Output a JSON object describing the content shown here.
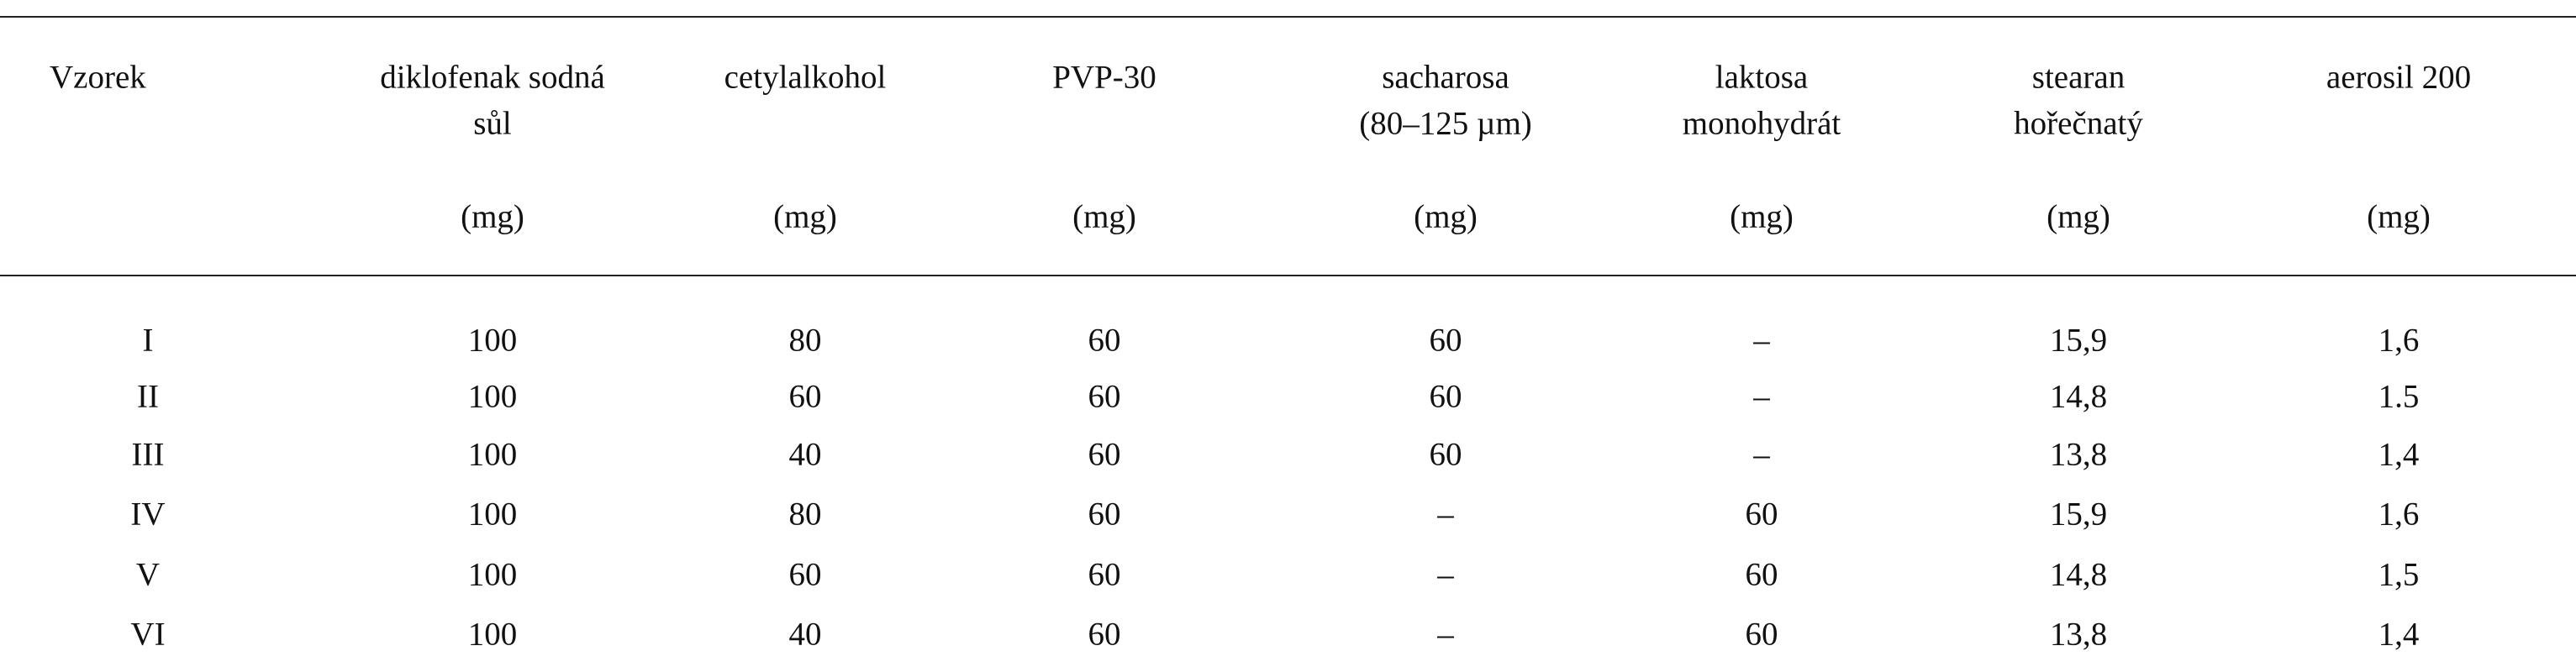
{
  "table": {
    "columns": [
      {
        "header": [
          "Vzorek"
        ]
      },
      {
        "header": [
          "diklofenak sodná",
          "sůl"
        ],
        "unit": "(mg)"
      },
      {
        "header": [
          "cetylalkohol"
        ],
        "unit": "(mg)"
      },
      {
        "header": [
          "PVP-30"
        ],
        "unit": "(mg)"
      },
      {
        "header": [
          "sacharosa",
          "(80–125 µm)"
        ],
        "unit": "(mg)"
      },
      {
        "header": [
          "laktosa",
          "monohydrát"
        ],
        "unit": "(mg)"
      },
      {
        "header": [
          "stearan",
          "hořečnatý"
        ],
        "unit": "(mg)"
      },
      {
        "header": [
          "aerosil 200"
        ],
        "unit": "(mg)"
      }
    ],
    "rows": [
      [
        "I",
        "100",
        "80",
        "60",
        "60",
        "–",
        "15,9",
        "1,6"
      ],
      [
        "II",
        "100",
        "60",
        "60",
        "60",
        "–",
        "14,8",
        "1.5"
      ],
      [
        "III",
        "100",
        "40",
        "60",
        "60",
        "–",
        "13,8",
        "1,4"
      ],
      [
        "IV",
        "100",
        "80",
        "60",
        "–",
        "60",
        "15,9",
        "1,6"
      ],
      [
        "V",
        "100",
        "60",
        "60",
        "–",
        "60",
        "14,8",
        "1,5"
      ],
      [
        "VI",
        "100",
        "40",
        "60",
        "–",
        "60",
        "13,8",
        "1,4"
      ]
    ]
  }
}
